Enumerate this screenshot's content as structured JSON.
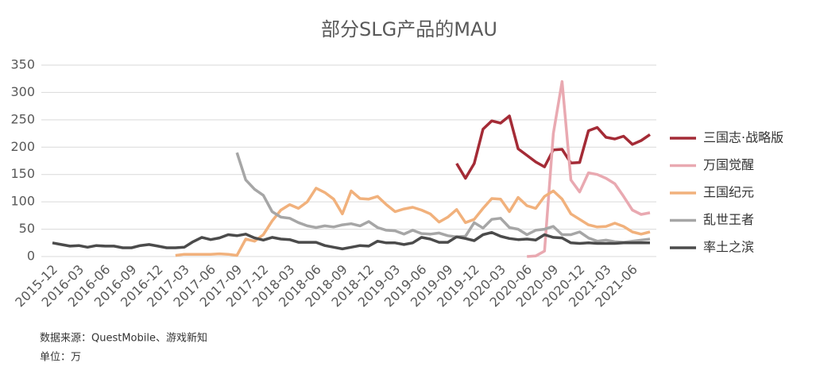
{
  "chart_data": {
    "type": "line",
    "title": "部分SLG产品的MAU",
    "categories": [
      "2015-12",
      null,
      null,
      "2016-03",
      null,
      null,
      "2016-06",
      null,
      null,
      "2016-09",
      null,
      null,
      "2016-12",
      null,
      null,
      "2017-03",
      null,
      null,
      "2017-06",
      null,
      null,
      "2017-09",
      null,
      null,
      "2017-12",
      null,
      null,
      "2018-03",
      null,
      null,
      "2018-06",
      null,
      null,
      "2018-09",
      null,
      null,
      "2018-12",
      null,
      null,
      "2019-03",
      null,
      null,
      "2019-06",
      null,
      null,
      "2019-09",
      null,
      null,
      "2019-12",
      null,
      null,
      "2020-03",
      null,
      null,
      "2020-06",
      null,
      null,
      "2020-09",
      null,
      null,
      "2020-12",
      null,
      null,
      "2021-03",
      null,
      null,
      "2021-06",
      null,
      null
    ],
    "series": [
      {
        "name": "三国志·战略版",
        "color": "#a42b36",
        "values": [
          null,
          null,
          null,
          null,
          null,
          null,
          null,
          null,
          null,
          null,
          null,
          null,
          null,
          null,
          null,
          null,
          null,
          null,
          null,
          null,
          null,
          null,
          null,
          null,
          null,
          null,
          null,
          null,
          null,
          null,
          null,
          null,
          null,
          null,
          null,
          null,
          null,
          null,
          null,
          null,
          null,
          null,
          null,
          null,
          null,
          null,
          170,
          143,
          170,
          233,
          248,
          244,
          257,
          197,
          185,
          173,
          164,
          195,
          196,
          171,
          172,
          230,
          236,
          218,
          215,
          220,
          205,
          212,
          223
        ]
      },
      {
        "name": "万国觉醒",
        "color": "#e9a9b1",
        "values": [
          null,
          null,
          null,
          null,
          null,
          null,
          null,
          null,
          null,
          null,
          null,
          null,
          null,
          null,
          null,
          null,
          null,
          null,
          null,
          null,
          null,
          null,
          null,
          null,
          null,
          null,
          null,
          null,
          null,
          null,
          null,
          null,
          null,
          null,
          null,
          null,
          null,
          null,
          null,
          null,
          null,
          null,
          null,
          null,
          null,
          null,
          null,
          null,
          null,
          null,
          null,
          null,
          null,
          null,
          0,
          1,
          10,
          225,
          320,
          140,
          118,
          153,
          150,
          143,
          133,
          110,
          85,
          77,
          80
        ]
      },
      {
        "name": "王国纪元",
        "color": "#f1b17c",
        "values": [
          null,
          null,
          null,
          null,
          null,
          null,
          null,
          null,
          null,
          null,
          null,
          null,
          null,
          null,
          2,
          4,
          4,
          4,
          4,
          5,
          4,
          2,
          32,
          28,
          40,
          65,
          85,
          95,
          88,
          100,
          125,
          117,
          105,
          78,
          120,
          106,
          105,
          110,
          95,
          82,
          87,
          90,
          85,
          78,
          63,
          72,
          86,
          62,
          68,
          88,
          106,
          105,
          82,
          108,
          93,
          88,
          110,
          120,
          105,
          78,
          68,
          58,
          54,
          55,
          61,
          55,
          45,
          41,
          45
        ]
      },
      {
        "name": "乱世王者",
        "color": "#a6a6a6",
        "values": [
          null,
          null,
          null,
          null,
          null,
          null,
          null,
          null,
          null,
          null,
          null,
          null,
          null,
          null,
          null,
          null,
          null,
          null,
          null,
          null,
          null,
          190,
          140,
          123,
          112,
          82,
          72,
          70,
          62,
          56,
          53,
          56,
          54,
          58,
          60,
          56,
          64,
          53,
          48,
          47,
          41,
          48,
          42,
          41,
          43,
          38,
          36,
          37,
          62,
          52,
          68,
          70,
          53,
          50,
          40,
          48,
          50,
          55,
          40,
          40,
          45,
          34,
          28,
          30,
          27,
          26,
          28,
          30,
          32
        ]
      },
      {
        "name": "率土之滨",
        "color": "#4b4b4b",
        "values": [
          25,
          22,
          19,
          20,
          17,
          20,
          19,
          19,
          16,
          16,
          20,
          22,
          19,
          16,
          16,
          17,
          27,
          35,
          31,
          34,
          40,
          38,
          41,
          34,
          30,
          35,
          32,
          31,
          26,
          26,
          26,
          20,
          17,
          14,
          17,
          20,
          19,
          28,
          25,
          25,
          22,
          25,
          35,
          32,
          26,
          26,
          36,
          33,
          29,
          40,
          44,
          37,
          33,
          31,
          32,
          30,
          40,
          35,
          34,
          25,
          24,
          25,
          24,
          24,
          24,
          25,
          25,
          25,
          25
        ]
      }
    ],
    "ylim": [
      0,
      350
    ],
    "yticks": [
      0,
      50,
      100,
      150,
      200,
      250,
      300,
      350
    ],
    "grid": true,
    "legend": "right",
    "notes": [
      "数据来源：QuestMobile、游戏新知",
      "单位：万"
    ]
  }
}
